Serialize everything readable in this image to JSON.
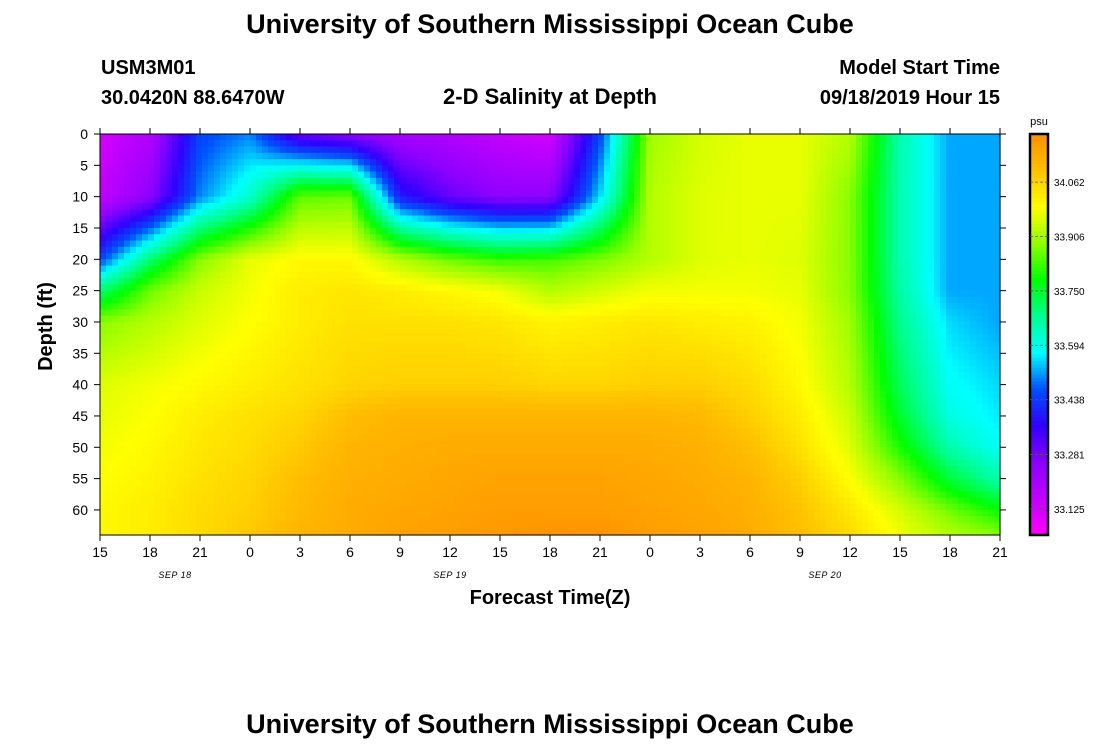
{
  "page": {
    "title_top": "University of Southern Mississippi Ocean Cube",
    "title_bottom": "University of Southern Mississippi Ocean Cube",
    "station_id": "USM3M01",
    "coordinates": "30.0420N 88.6470W",
    "plot_title": "2-D Salinity at Depth",
    "model_start_label": "Model Start Time",
    "model_start_value": "09/18/2019 Hour 15"
  },
  "chart_data": {
    "type": "heatmap",
    "title": "2-D Salinity at Depth",
    "xlabel": "Forecast Time(Z)",
    "ylabel": "Depth (ft)",
    "x_tick_labels": [
      "15",
      "18",
      "21",
      "0",
      "3",
      "6",
      "9",
      "12",
      "15",
      "18",
      "21",
      "0",
      "3",
      "6",
      "9",
      "12",
      "15",
      "18",
      "21"
    ],
    "x_hours_from_start": [
      0,
      3,
      6,
      9,
      12,
      15,
      18,
      21,
      24,
      27,
      30,
      33,
      36,
      39,
      42,
      45,
      48,
      51,
      54
    ],
    "date_labels": [
      {
        "text": "SEP 18",
        "hour": 4.5
      },
      {
        "text": "SEP 19",
        "hour": 21
      },
      {
        "text": "SEP 20",
        "hour": 43.5
      }
    ],
    "y_ticks": [
      0,
      5,
      10,
      15,
      20,
      25,
      30,
      35,
      40,
      45,
      50,
      55,
      60
    ],
    "ylim": [
      0,
      64
    ],
    "xlim": [
      0,
      54
    ],
    "colorbar": {
      "unit": "psu",
      "ticks": [
        "34.062",
        "33.906",
        "33.750",
        "33.594",
        "33.438",
        "33.281",
        "33.125"
      ],
      "tick_values": [
        34.062,
        33.906,
        33.75,
        33.594,
        33.438,
        33.281,
        33.125
      ],
      "range": [
        33.05,
        34.2
      ],
      "colors": [
        "#ff00ff",
        "#c000ff",
        "#8a00ff",
        "#3000ff",
        "#0050ff",
        "#00ffff",
        "#00ff90",
        "#00ff00",
        "#90ff00",
        "#ffff00",
        "#ffc000",
        "#ff9000"
      ]
    },
    "grid_hours": [
      0,
      3,
      6,
      9,
      12,
      15,
      18,
      21,
      24,
      27,
      30,
      33,
      36,
      39,
      42,
      45,
      48,
      51,
      54
    ],
    "grid_depths": [
      0,
      10,
      20,
      25,
      30,
      40,
      45,
      50,
      55,
      60,
      64
    ],
    "salinity": [
      [
        33.12,
        33.18,
        33.45,
        33.5,
        33.3,
        33.25,
        33.2,
        33.18,
        33.15,
        33.12,
        33.45,
        33.9,
        33.95,
        33.97,
        33.97,
        33.92,
        33.65,
        33.52,
        33.52
      ],
      [
        33.15,
        33.25,
        33.5,
        33.62,
        33.85,
        33.86,
        33.4,
        33.3,
        33.25,
        33.25,
        33.55,
        33.92,
        33.96,
        33.97,
        33.97,
        33.88,
        33.65,
        33.52,
        33.52
      ],
      [
        33.45,
        33.7,
        33.88,
        33.97,
        34.0,
        34.0,
        33.92,
        33.86,
        33.82,
        33.83,
        33.87,
        33.92,
        33.96,
        33.97,
        33.96,
        33.88,
        33.65,
        33.52,
        33.52
      ],
      [
        33.7,
        33.86,
        33.94,
        33.98,
        34.02,
        34.03,
        34.02,
        34.0,
        33.98,
        33.92,
        33.95,
        33.98,
        33.98,
        33.98,
        33.97,
        33.88,
        33.66,
        33.52,
        33.52
      ],
      [
        33.88,
        33.92,
        33.96,
        33.99,
        34.02,
        34.04,
        34.04,
        34.04,
        34.03,
        34.01,
        34.02,
        34.03,
        34.02,
        34.01,
        33.98,
        33.9,
        33.68,
        33.55,
        33.52
      ],
      [
        33.96,
        33.98,
        34.0,
        34.02,
        34.04,
        34.06,
        34.07,
        34.07,
        34.07,
        34.06,
        34.06,
        34.07,
        34.07,
        34.05,
        34.0,
        33.92,
        33.72,
        33.58,
        33.55
      ],
      [
        33.97,
        33.99,
        34.02,
        34.04,
        34.06,
        34.1,
        34.12,
        34.12,
        34.12,
        34.12,
        34.12,
        34.12,
        34.11,
        34.07,
        34.02,
        33.94,
        33.75,
        33.6,
        33.56
      ],
      [
        33.98,
        34.0,
        34.03,
        34.05,
        34.08,
        34.12,
        34.13,
        34.14,
        34.14,
        34.14,
        34.14,
        34.14,
        34.13,
        34.1,
        34.04,
        33.96,
        33.8,
        33.65,
        33.58
      ],
      [
        33.99,
        34.01,
        34.04,
        34.06,
        34.1,
        34.13,
        34.14,
        34.15,
        34.16,
        34.16,
        34.16,
        34.15,
        34.14,
        34.12,
        34.07,
        33.99,
        33.88,
        33.74,
        33.65
      ],
      [
        34.0,
        34.02,
        34.05,
        34.07,
        34.11,
        34.14,
        34.15,
        34.16,
        34.17,
        34.17,
        34.17,
        34.16,
        34.15,
        34.13,
        34.09,
        34.03,
        33.95,
        33.86,
        33.78
      ],
      [
        34.0,
        34.02,
        34.05,
        34.08,
        34.12,
        34.14,
        34.16,
        34.17,
        34.18,
        34.19,
        34.19,
        34.17,
        34.16,
        34.14,
        34.1,
        34.05,
        33.98,
        33.92,
        33.88
      ]
    ]
  }
}
